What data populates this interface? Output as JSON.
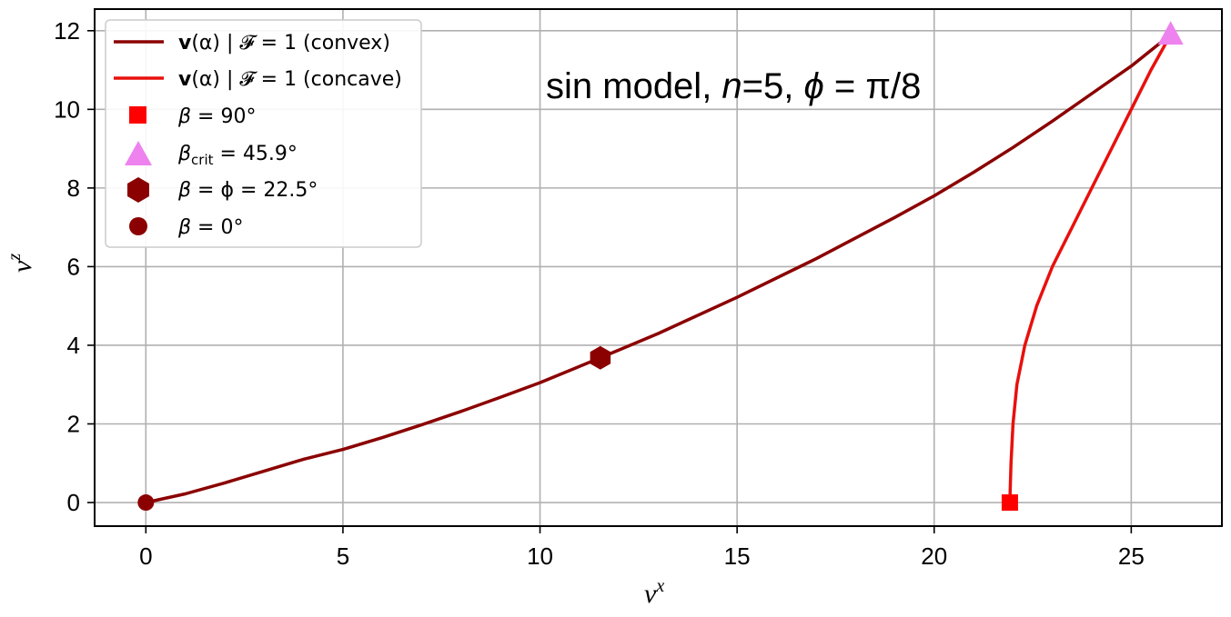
{
  "chart_data": {
    "type": "line",
    "title": "",
    "annotation": {
      "prefix": "sin model, ",
      "n_symbol": "n",
      "n_value": "=5, ",
      "phi_symbol": "ϕ",
      "phi_value": " = π/8"
    },
    "xlabel": {
      "base": "v",
      "sup": "x"
    },
    "ylabel": {
      "base": "v",
      "sup": "z"
    },
    "xlim": [
      -1.3,
      27.3
    ],
    "ylim": [
      -0.6,
      12.55
    ],
    "xticks": [
      0,
      5,
      10,
      15,
      20,
      25
    ],
    "yticks": [
      0,
      2,
      4,
      6,
      8,
      10,
      12
    ],
    "grid": true,
    "legend_position": "top-left",
    "series": [
      {
        "name": "v(α) | 𝓕 = 1 (convex)",
        "legend_bold": "v",
        "legend_rest": "(α) | 𝓕 = 1 (convex)",
        "color": "#8b0000",
        "x": [
          0,
          1,
          2,
          3,
          4,
          5,
          6,
          7,
          8,
          9,
          10,
          11.53,
          13,
          15,
          17,
          19,
          20,
          21,
          22,
          23,
          24,
          25,
          26
        ],
        "y": [
          0,
          0.22,
          0.5,
          0.8,
          1.1,
          1.35,
          1.65,
          1.98,
          2.32,
          2.68,
          3.05,
          3.68,
          4.3,
          5.22,
          6.2,
          7.25,
          7.8,
          8.4,
          9.03,
          9.7,
          10.4,
          11.1,
          11.9
        ]
      },
      {
        "name": "v(α) | 𝓕 = 1 (concave)",
        "legend_bold": "v",
        "legend_rest": "(α) | 𝓕 = 1 (concave)",
        "color": "#e8100c",
        "x": [
          21.92,
          21.95,
          22.0,
          22.1,
          22.3,
          22.6,
          23.0,
          23.5,
          24.0,
          24.5,
          25.0,
          25.5,
          26.0
        ],
        "y": [
          0,
          1.0,
          2.0,
          3.0,
          4.0,
          5.0,
          6.0,
          7.0,
          8.0,
          9.0,
          10.0,
          11.0,
          11.9
        ]
      }
    ],
    "markers": [
      {
        "name": "β = 90°",
        "symbol": "square",
        "color": "#ff0000",
        "x": 21.92,
        "y": 0,
        "legend_main": "β",
        "legend_sub": "",
        "legend_tail": " = 90°"
      },
      {
        "name": "β_crit = 45.9°",
        "symbol": "triangle",
        "color": "#ee82ee",
        "x": 26.0,
        "y": 11.9,
        "legend_main": "β",
        "legend_sub": "crit",
        "legend_tail": " = 45.9°"
      },
      {
        "name": "β = ϕ = 22.5°",
        "symbol": "hexagon",
        "color": "#8b0000",
        "x": 11.53,
        "y": 3.68,
        "legend_main": "β",
        "legend_sub": "",
        "legend_tail": " = ϕ = 22.5°"
      },
      {
        "name": "β = 0°",
        "symbol": "circle",
        "color": "#8b0000",
        "x": 0,
        "y": 0,
        "legend_main": "β",
        "legend_sub": "",
        "legend_tail": " = 0°"
      }
    ]
  }
}
